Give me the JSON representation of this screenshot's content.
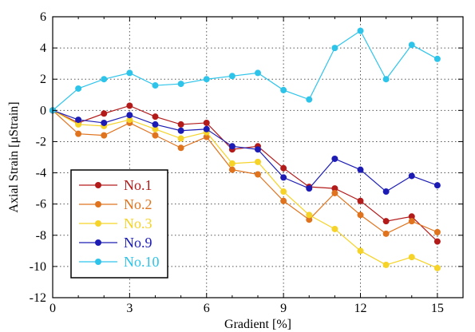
{
  "chart_data": {
    "type": "line",
    "xlabel": "Gradient [%]",
    "ylabel": "Axial Strain [μStrain]",
    "xlim": [
      0,
      16
    ],
    "ylim": [
      -12,
      6
    ],
    "xticks": [
      0,
      3,
      6,
      9,
      12,
      15
    ],
    "yticks": [
      -12,
      -10,
      -8,
      -6,
      -4,
      -2,
      0,
      2,
      4,
      6
    ],
    "grid": "dotted",
    "legend_position": "lower-left",
    "x": [
      0,
      1,
      2,
      3,
      4,
      5,
      6,
      7,
      8,
      9,
      10,
      11,
      12,
      13,
      14,
      15
    ],
    "series": [
      {
        "name": "No.1",
        "color": "#b31b1b",
        "values": [
          0,
          -0.8,
          -0.2,
          0.3,
          -0.4,
          -0.9,
          -0.8,
          -2.5,
          -2.3,
          -3.7,
          -4.9,
          -5.0,
          -5.8,
          -7.1,
          -6.8,
          -8.4
        ]
      },
      {
        "name": "No.2",
        "color": "#e0741e",
        "values": [
          0,
          -1.5,
          -1.6,
          -0.8,
          -1.6,
          -2.4,
          -1.7,
          -3.8,
          -4.1,
          -5.8,
          -7.0,
          -5.3,
          -6.7,
          -7.9,
          -7.1,
          -7.8
        ]
      },
      {
        "name": "No.3",
        "color": "#f5d328",
        "values": [
          0,
          -0.9,
          -1.0,
          -0.6,
          -1.2,
          -1.8,
          -1.4,
          -3.4,
          -3.3,
          -5.2,
          -6.7,
          -7.6,
          -9.0,
          -9.9,
          -9.4,
          -10.1
        ]
      },
      {
        "name": "No.9",
        "color": "#1c1cb5",
        "values": [
          0,
          -0.6,
          -0.8,
          -0.3,
          -0.9,
          -1.3,
          -1.2,
          -2.3,
          -2.5,
          -4.3,
          -5.0,
          -3.1,
          -3.8,
          -5.2,
          -4.2,
          -4.8
        ]
      },
      {
        "name": "No.10",
        "color": "#2ec4ea",
        "values": [
          0,
          1.4,
          2.0,
          2.4,
          1.6,
          1.7,
          2.0,
          2.2,
          2.4,
          1.3,
          0.7,
          4.0,
          5.1,
          2.0,
          4.2,
          3.3
        ]
      }
    ]
  }
}
